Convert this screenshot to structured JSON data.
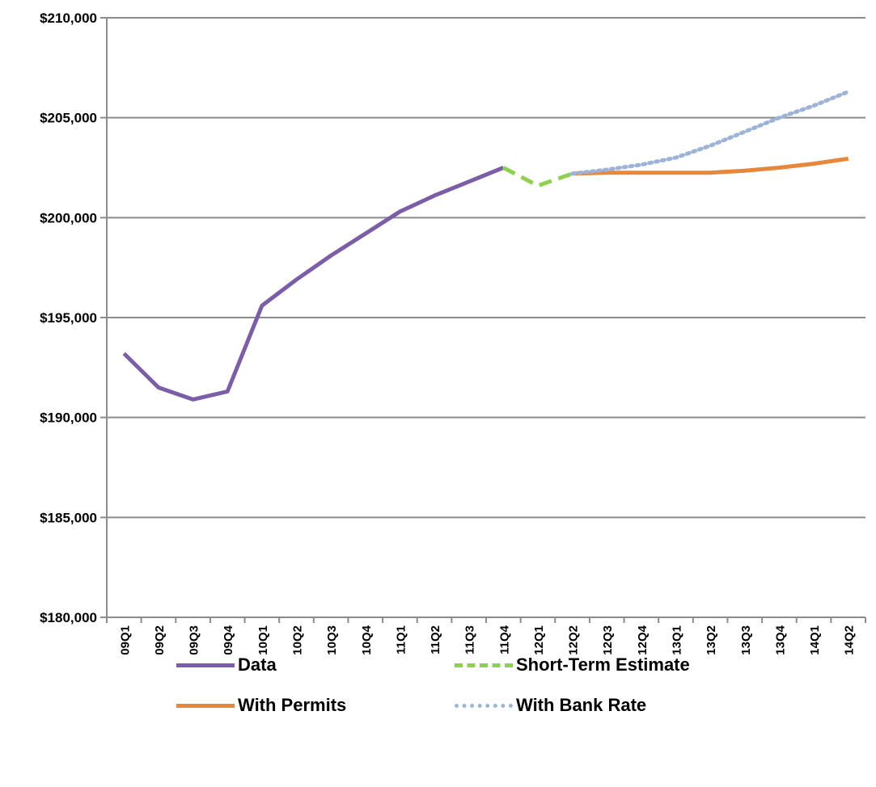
{
  "chart_data": {
    "type": "line",
    "title": "",
    "xlabel": "",
    "ylabel": "",
    "ylim": [
      180000,
      210000
    ],
    "y_ticks": [
      180000,
      185000,
      190000,
      195000,
      200000,
      205000,
      210000
    ],
    "y_tick_labels": [
      "$180,000",
      "$185,000",
      "$190,000",
      "$195,000",
      "$200,000",
      "$205,000",
      "$210,000"
    ],
    "grid": true,
    "legend_position": "bottom",
    "categories": [
      "2009Q1",
      "2009Q2",
      "2009Q3",
      "2009Q4",
      "2010Q1",
      "2010Q2",
      "2010Q3",
      "2010Q4",
      "2011Q1",
      "2011Q2",
      "2011Q3",
      "2011Q4",
      "2012Q1",
      "2012Q2",
      "2012Q3",
      "2012Q4",
      "2013Q1",
      "2013Q2",
      "2013Q3",
      "2013Q4",
      "2014Q1",
      "2014Q2"
    ],
    "series": [
      {
        "name": "Data",
        "color": "#7b5ea7",
        "style": "solid",
        "values": [
          193200,
          191500,
          190900,
          191300,
          195600,
          196900,
          198100,
          199200,
          200300,
          201100,
          201800,
          202500,
          null,
          null,
          null,
          null,
          null,
          null,
          null,
          null,
          null,
          null
        ]
      },
      {
        "name": "Short-Term Estimate",
        "color": "#8fd14f",
        "style": "dashed",
        "values": [
          null,
          null,
          null,
          null,
          null,
          null,
          null,
          null,
          null,
          null,
          null,
          202500,
          201600,
          202200,
          null,
          null,
          null,
          null,
          null,
          null,
          null,
          null
        ]
      },
      {
        "name": "With Permits",
        "color": "#e8873a",
        "style": "solid",
        "values": [
          null,
          null,
          null,
          null,
          null,
          null,
          null,
          null,
          null,
          null,
          null,
          null,
          null,
          202200,
          202250,
          202250,
          202250,
          202250,
          202350,
          202500,
          202700,
          202950
        ]
      },
      {
        "name": "With Bank Rate",
        "color": "#9db4d8",
        "style": "dotted",
        "values": [
          null,
          null,
          null,
          null,
          null,
          null,
          null,
          null,
          null,
          null,
          null,
          null,
          null,
          202200,
          202400,
          202650,
          203000,
          203600,
          204300,
          205000,
          205600,
          206300
        ]
      }
    ]
  }
}
